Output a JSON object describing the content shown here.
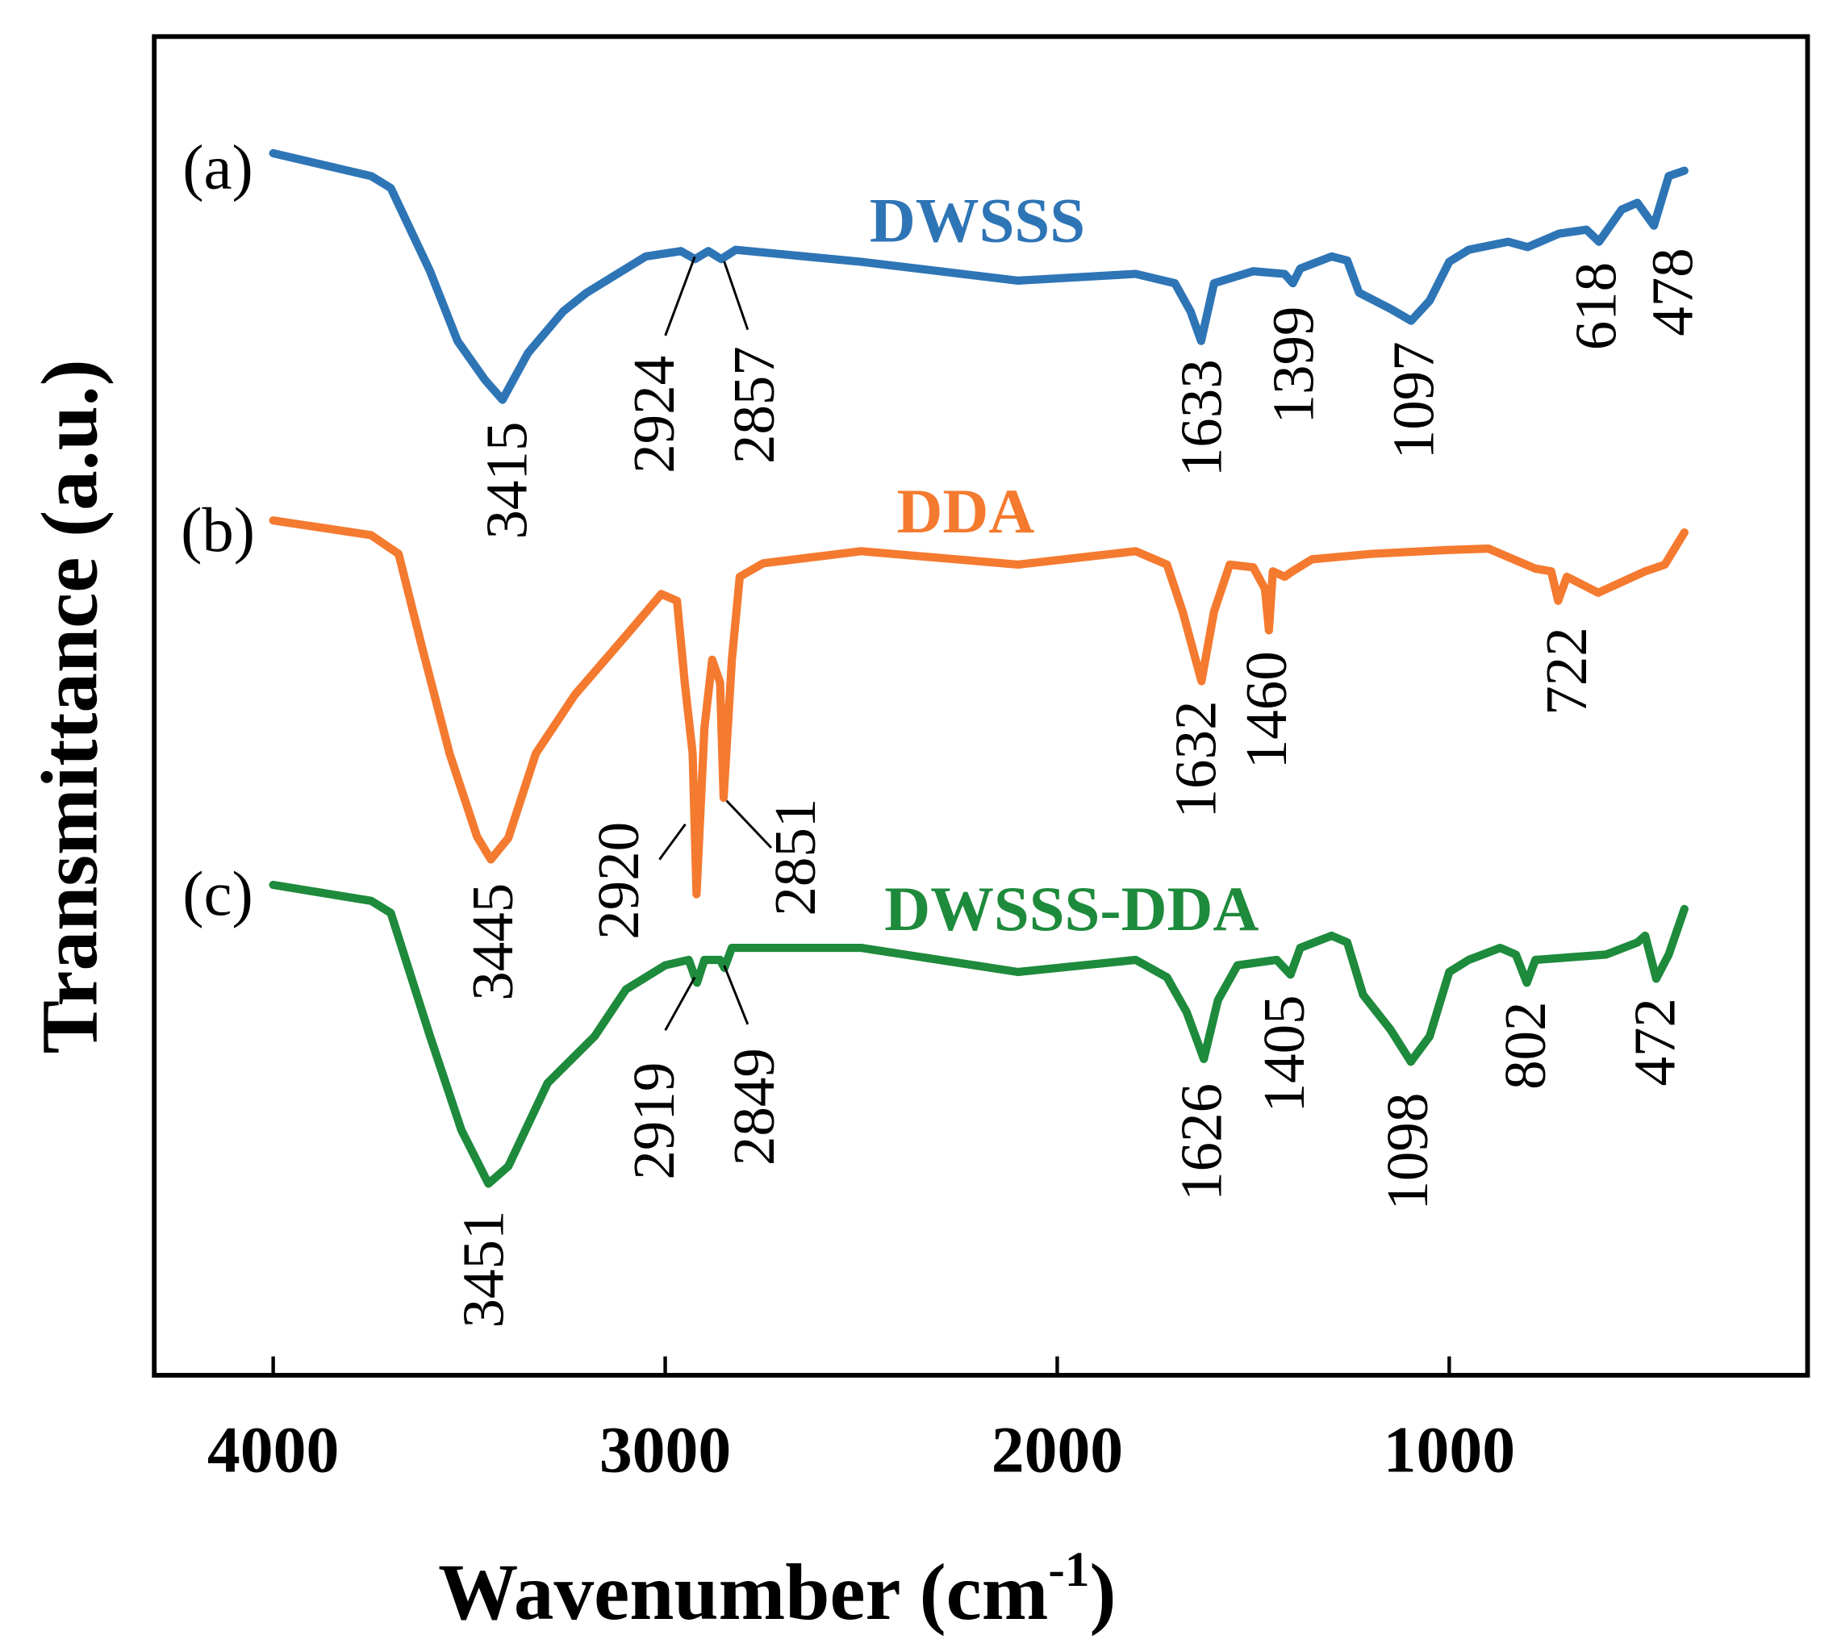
{
  "chart_data": {
    "type": "line",
    "title": "",
    "xlabel": "Wavenumber (cm",
    "xlabel_sup": "-1",
    "xlabel_close": ")",
    "ylabel": "Transmittance (a.u.)",
    "xlim": [
      4000,
      400
    ],
    "x_reversed": true,
    "ylim": [
      0,
      100
    ],
    "xticks": [
      "4000",
      "3000",
      "2000",
      "1000"
    ],
    "xtick_values": [
      4000,
      3000,
      2000,
      1000
    ],
    "grid": false,
    "series": [
      {
        "name": "DWSSS",
        "panel": "(a)",
        "color": "#2e75b6",
        "points": [
          [
            4000,
            91.2
          ],
          [
            3750,
            89.5
          ],
          [
            3700,
            88.6
          ],
          [
            3600,
            82.4
          ],
          [
            3530,
            77.2
          ],
          [
            3460,
            74.3
          ],
          [
            3415,
            72.8
          ],
          [
            3350,
            76.3
          ],
          [
            3260,
            79.4
          ],
          [
            3200,
            80.8
          ],
          [
            3050,
            83.5
          ],
          [
            2960,
            83.9
          ],
          [
            2924,
            83.3
          ],
          [
            2890,
            83.9
          ],
          [
            2857,
            83.3
          ],
          [
            2820,
            84.0
          ],
          [
            2500,
            83.1
          ],
          [
            2100,
            81.7
          ],
          [
            1800,
            82.2
          ],
          [
            1700,
            81.5
          ],
          [
            1660,
            79.4
          ],
          [
            1633,
            77.2
          ],
          [
            1600,
            81.5
          ],
          [
            1500,
            82.4
          ],
          [
            1420,
            82.2
          ],
          [
            1399,
            81.5
          ],
          [
            1380,
            82.6
          ],
          [
            1300,
            83.5
          ],
          [
            1260,
            83.2
          ],
          [
            1230,
            80.8
          ],
          [
            1150,
            79.6
          ],
          [
            1097,
            78.7
          ],
          [
            1050,
            80.2
          ],
          [
            1000,
            83.1
          ],
          [
            950,
            84.0
          ],
          [
            850,
            84.6
          ],
          [
            800,
            84.2
          ],
          [
            720,
            85.2
          ],
          [
            650,
            85.5
          ],
          [
            618,
            84.6
          ],
          [
            560,
            87.0
          ],
          [
            520,
            87.5
          ],
          [
            478,
            85.8
          ],
          [
            440,
            89.5
          ],
          [
            400,
            89.9
          ]
        ],
        "annotations": [
          "3415",
          "2924",
          "2857",
          "1633",
          "1399",
          "1097",
          "618",
          "478"
        ]
      },
      {
        "name": "DDA",
        "panel": "(b)",
        "color": "#f47a30",
        "points": [
          [
            4000,
            63.8
          ],
          [
            3750,
            62.7
          ],
          [
            3680,
            61.3
          ],
          [
            3620,
            54.3
          ],
          [
            3550,
            46.4
          ],
          [
            3480,
            40.2
          ],
          [
            3445,
            38.5
          ],
          [
            3400,
            40.1
          ],
          [
            3330,
            46.4
          ],
          [
            3230,
            50.8
          ],
          [
            3100,
            55.2
          ],
          [
            3010,
            58.3
          ],
          [
            2970,
            57.8
          ],
          [
            2950,
            51.7
          ],
          [
            2930,
            46.4
          ],
          [
            2920,
            35.9
          ],
          [
            2900,
            48.3
          ],
          [
            2880,
            53.4
          ],
          [
            2860,
            51.7
          ],
          [
            2851,
            43.1
          ],
          [
            2830,
            53.4
          ],
          [
            2810,
            59.6
          ],
          [
            2750,
            60.6
          ],
          [
            2500,
            61.5
          ],
          [
            2100,
            60.5
          ],
          [
            1800,
            61.5
          ],
          [
            1720,
            60.5
          ],
          [
            1680,
            57.0
          ],
          [
            1632,
            51.8
          ],
          [
            1600,
            57.0
          ],
          [
            1560,
            60.5
          ],
          [
            1500,
            60.3
          ],
          [
            1470,
            58.7
          ],
          [
            1460,
            55.6
          ],
          [
            1450,
            60.0
          ],
          [
            1420,
            59.6
          ],
          [
            1400,
            60.0
          ],
          [
            1350,
            60.9
          ],
          [
            1200,
            61.3
          ],
          [
            1000,
            61.6
          ],
          [
            900,
            61.7
          ],
          [
            780,
            60.2
          ],
          [
            740,
            60.0
          ],
          [
            722,
            57.8
          ],
          [
            700,
            59.6
          ],
          [
            620,
            58.4
          ],
          [
            500,
            60.0
          ],
          [
            450,
            60.5
          ],
          [
            400,
            62.9
          ]
        ],
        "annotations": [
          "3445",
          "2920",
          "2851",
          "1632",
          "1460",
          "722"
        ]
      },
      {
        "name": "DWSSS-DDA",
        "panel": "(c)",
        "color": "#1e8a3c",
        "points": [
          [
            4000,
            36.6
          ],
          [
            3750,
            35.4
          ],
          [
            3700,
            34.5
          ],
          [
            3600,
            25.3
          ],
          [
            3520,
            18.3
          ],
          [
            3451,
            14.3
          ],
          [
            3400,
            15.6
          ],
          [
            3300,
            21.8
          ],
          [
            3180,
            25.3
          ],
          [
            3100,
            28.8
          ],
          [
            3000,
            30.6
          ],
          [
            2940,
            31.0
          ],
          [
            2919,
            29.3
          ],
          [
            2900,
            31.0
          ],
          [
            2860,
            31.0
          ],
          [
            2849,
            30.4
          ],
          [
            2830,
            31.9
          ],
          [
            2500,
            31.9
          ],
          [
            2100,
            30.1
          ],
          [
            1800,
            31.0
          ],
          [
            1720,
            29.7
          ],
          [
            1670,
            27.1
          ],
          [
            1626,
            23.6
          ],
          [
            1590,
            28.0
          ],
          [
            1540,
            30.6
          ],
          [
            1440,
            31.0
          ],
          [
            1405,
            29.9
          ],
          [
            1380,
            31.9
          ],
          [
            1300,
            32.8
          ],
          [
            1260,
            32.3
          ],
          [
            1220,
            28.4
          ],
          [
            1150,
            25.8
          ],
          [
            1098,
            23.4
          ],
          [
            1050,
            25.3
          ],
          [
            1000,
            30.1
          ],
          [
            950,
            31.0
          ],
          [
            870,
            31.9
          ],
          [
            830,
            31.4
          ],
          [
            802,
            29.3
          ],
          [
            780,
            31.0
          ],
          [
            600,
            31.4
          ],
          [
            520,
            32.3
          ],
          [
            500,
            32.8
          ],
          [
            472,
            29.6
          ],
          [
            440,
            31.4
          ],
          [
            400,
            34.8
          ]
        ],
        "annotations": [
          "3451",
          "2919",
          "2849",
          "1626",
          "1405",
          "1098",
          "802",
          "472"
        ]
      }
    ]
  }
}
